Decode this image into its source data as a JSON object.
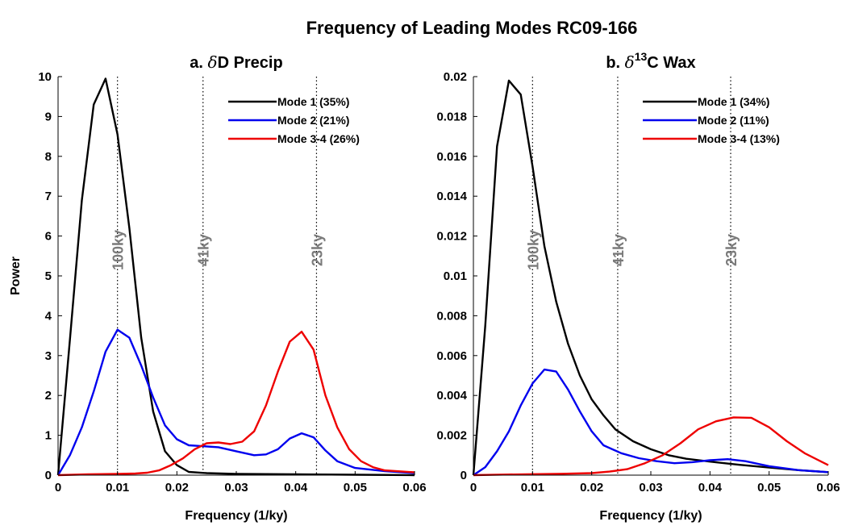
{
  "figure_title": "Frequency of Leading Modes RC09-166",
  "chart_data": [
    {
      "type": "line",
      "title_prefix": "a. ",
      "title_symbol": "δ",
      "title_superscript": "",
      "title_suffix": "D Precip",
      "xlabel": "Frequency (1/ky)",
      "ylabel": "Power",
      "xlim": [
        0,
        0.06
      ],
      "ylim": [
        0,
        10
      ],
      "xticks": [
        "0",
        "0.01",
        "0.02",
        "0.03",
        "0.04",
        "0.05",
        "0.06"
      ],
      "yticks": [
        "0",
        "1",
        "2",
        "3",
        "4",
        "5",
        "6",
        "7",
        "8",
        "9",
        "10"
      ],
      "legend_position": "top-right",
      "grid": false,
      "reference_lines": [
        {
          "x": 0.01,
          "label": "100ky"
        },
        {
          "x": 0.0244,
          "label": "41ky"
        },
        {
          "x": 0.0435,
          "label": "23ky"
        }
      ],
      "series": [
        {
          "name": "Mode 1 (35%)",
          "color": "#000000",
          "points": [
            [
              0,
              0
            ],
            [
              0.002,
              3.4
            ],
            [
              0.004,
              6.9
            ],
            [
              0.006,
              9.3
            ],
            [
              0.008,
              9.95
            ],
            [
              0.01,
              8.55
            ],
            [
              0.012,
              6.2
            ],
            [
              0.014,
              3.45
            ],
            [
              0.016,
              1.6
            ],
            [
              0.018,
              0.6
            ],
            [
              0.02,
              0.25
            ],
            [
              0.022,
              0.08
            ],
            [
              0.025,
              0.05
            ],
            [
              0.03,
              0.03
            ],
            [
              0.04,
              0.02
            ],
            [
              0.05,
              0.01
            ],
            [
              0.06,
              0
            ]
          ]
        },
        {
          "name": "Mode 2 (21%)",
          "color": "#0000ee",
          "points": [
            [
              0,
              0
            ],
            [
              0.002,
              0.5
            ],
            [
              0.004,
              1.2
            ],
            [
              0.006,
              2.1
            ],
            [
              0.008,
              3.1
            ],
            [
              0.01,
              3.65
            ],
            [
              0.012,
              3.45
            ],
            [
              0.014,
              2.75
            ],
            [
              0.016,
              1.95
            ],
            [
              0.018,
              1.25
            ],
            [
              0.02,
              0.9
            ],
            [
              0.022,
              0.75
            ],
            [
              0.024,
              0.73
            ],
            [
              0.027,
              0.7
            ],
            [
              0.03,
              0.6
            ],
            [
              0.033,
              0.5
            ],
            [
              0.035,
              0.52
            ],
            [
              0.037,
              0.65
            ],
            [
              0.039,
              0.92
            ],
            [
              0.041,
              1.05
            ],
            [
              0.043,
              0.95
            ],
            [
              0.045,
              0.62
            ],
            [
              0.047,
              0.35
            ],
            [
              0.05,
              0.18
            ],
            [
              0.055,
              0.1
            ],
            [
              0.06,
              0.05
            ]
          ]
        },
        {
          "name": "Mode 3-4 (26%)",
          "color": "#ee0000",
          "points": [
            [
              0,
              0
            ],
            [
              0.005,
              0.02
            ],
            [
              0.01,
              0.03
            ],
            [
              0.013,
              0.04
            ],
            [
              0.015,
              0.06
            ],
            [
              0.017,
              0.12
            ],
            [
              0.019,
              0.25
            ],
            [
              0.021,
              0.42
            ],
            [
              0.023,
              0.65
            ],
            [
              0.025,
              0.8
            ],
            [
              0.027,
              0.82
            ],
            [
              0.029,
              0.78
            ],
            [
              0.031,
              0.84
            ],
            [
              0.033,
              1.1
            ],
            [
              0.035,
              1.75
            ],
            [
              0.037,
              2.6
            ],
            [
              0.039,
              3.35
            ],
            [
              0.041,
              3.6
            ],
            [
              0.043,
              3.15
            ],
            [
              0.045,
              2.0
            ],
            [
              0.047,
              1.2
            ],
            [
              0.049,
              0.65
            ],
            [
              0.051,
              0.35
            ],
            [
              0.053,
              0.2
            ],
            [
              0.055,
              0.12
            ],
            [
              0.06,
              0.07
            ]
          ]
        }
      ]
    },
    {
      "type": "line",
      "title_prefix": "b. ",
      "title_symbol": "δ",
      "title_superscript": "13",
      "title_suffix": "C Wax",
      "xlabel": "Frequency (1/ky)",
      "ylabel": "",
      "xlim": [
        0,
        0.06
      ],
      "ylim": [
        0,
        0.02
      ],
      "xticks": [
        "0",
        "0.01",
        "0.02",
        "0.03",
        "0.04",
        "0.05",
        "0.06"
      ],
      "yticks": [
        "0",
        "0.002",
        "0.004",
        "0.006",
        "0.008",
        "0.01",
        "0.012",
        "0.014",
        "0.016",
        "0.018",
        "0.02"
      ],
      "legend_position": "top-right",
      "grid": false,
      "reference_lines": [
        {
          "x": 0.01,
          "label": "100ky"
        },
        {
          "x": 0.0244,
          "label": "41ky"
        },
        {
          "x": 0.0435,
          "label": "23ky"
        }
      ],
      "series": [
        {
          "name": "Mode 1 (34%)",
          "color": "#000000",
          "points": [
            [
              0,
              0
            ],
            [
              0.002,
              0.0075
            ],
            [
              0.004,
              0.0165
            ],
            [
              0.006,
              0.0198
            ],
            [
              0.008,
              0.0191
            ],
            [
              0.01,
              0.0155
            ],
            [
              0.012,
              0.0115
            ],
            [
              0.014,
              0.0087
            ],
            [
              0.016,
              0.0066
            ],
            [
              0.018,
              0.005
            ],
            [
              0.02,
              0.0038
            ],
            [
              0.022,
              0.003
            ],
            [
              0.024,
              0.0023
            ],
            [
              0.027,
              0.0017
            ],
            [
              0.03,
              0.0013
            ],
            [
              0.033,
              0.001
            ],
            [
              0.036,
              0.00082
            ],
            [
              0.04,
              0.00068
            ],
            [
              0.045,
              0.00052
            ],
            [
              0.05,
              0.00038
            ],
            [
              0.055,
              0.00025
            ],
            [
              0.06,
              0.00015
            ]
          ]
        },
        {
          "name": "Mode 2 (11%)",
          "color": "#0000ee",
          "points": [
            [
              0,
              0
            ],
            [
              0.002,
              0.0004
            ],
            [
              0.004,
              0.0012
            ],
            [
              0.006,
              0.0022
            ],
            [
              0.008,
              0.0035
            ],
            [
              0.01,
              0.0046
            ],
            [
              0.012,
              0.0053
            ],
            [
              0.014,
              0.0052
            ],
            [
              0.016,
              0.0043
            ],
            [
              0.018,
              0.0032
            ],
            [
              0.02,
              0.0022
            ],
            [
              0.022,
              0.0015
            ],
            [
              0.025,
              0.0011
            ],
            [
              0.028,
              0.00085
            ],
            [
              0.031,
              0.0007
            ],
            [
              0.034,
              0.0006
            ],
            [
              0.037,
              0.00065
            ],
            [
              0.04,
              0.00075
            ],
            [
              0.043,
              0.0008
            ],
            [
              0.046,
              0.0007
            ],
            [
              0.05,
              0.00045
            ],
            [
              0.055,
              0.00025
            ],
            [
              0.06,
              0.00015
            ]
          ]
        },
        {
          "name": "Mode 3-4 (13%)",
          "color": "#ee0000",
          "points": [
            [
              0,
              0
            ],
            [
              0.005,
              3e-05
            ],
            [
              0.01,
              5e-05
            ],
            [
              0.015,
              7e-05
            ],
            [
              0.02,
              0.0001
            ],
            [
              0.023,
              0.00018
            ],
            [
              0.026,
              0.0003
            ],
            [
              0.029,
              0.0006
            ],
            [
              0.032,
              0.001
            ],
            [
              0.035,
              0.0016
            ],
            [
              0.038,
              0.0023
            ],
            [
              0.041,
              0.0027
            ],
            [
              0.044,
              0.0029
            ],
            [
              0.047,
              0.00288
            ],
            [
              0.05,
              0.0024
            ],
            [
              0.053,
              0.0017
            ],
            [
              0.056,
              0.0011
            ],
            [
              0.06,
              0.0005
            ]
          ]
        }
      ]
    }
  ]
}
